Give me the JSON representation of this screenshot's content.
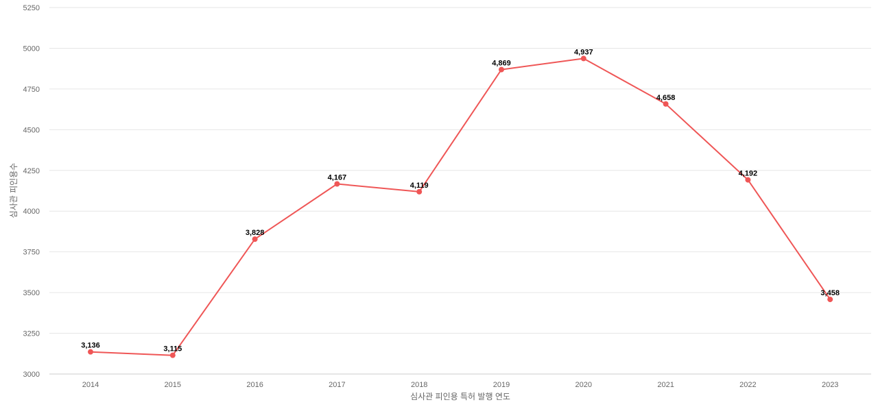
{
  "chart_data": {
    "type": "line",
    "title": "",
    "xlabel": "심사관 피인용 특허 발행 연도",
    "ylabel": "심사관 피인용수",
    "categories": [
      "2014",
      "2015",
      "2016",
      "2017",
      "2018",
      "2019",
      "2020",
      "2021",
      "2022",
      "2023"
    ],
    "series": [
      {
        "values": [
          3136,
          3115,
          3828,
          4167,
          4119,
          4869,
          4937,
          4658,
          4192,
          3458
        ]
      }
    ],
    "data_labels": [
      "3,136",
      "3,115",
      "3,828",
      "4,167",
      "4,119",
      "4,869",
      "4,937",
      "4,658",
      "4,192",
      "3,458"
    ],
    "ylim": [
      3000,
      5250
    ],
    "yticks": [
      3000,
      3250,
      3500,
      3750,
      4000,
      4250,
      4500,
      4750,
      5000,
      5250
    ],
    "grid": true,
    "legend": "none",
    "colors": {
      "line": "#ef5656",
      "grid": "#e6e6e6",
      "text": "#666666"
    }
  }
}
